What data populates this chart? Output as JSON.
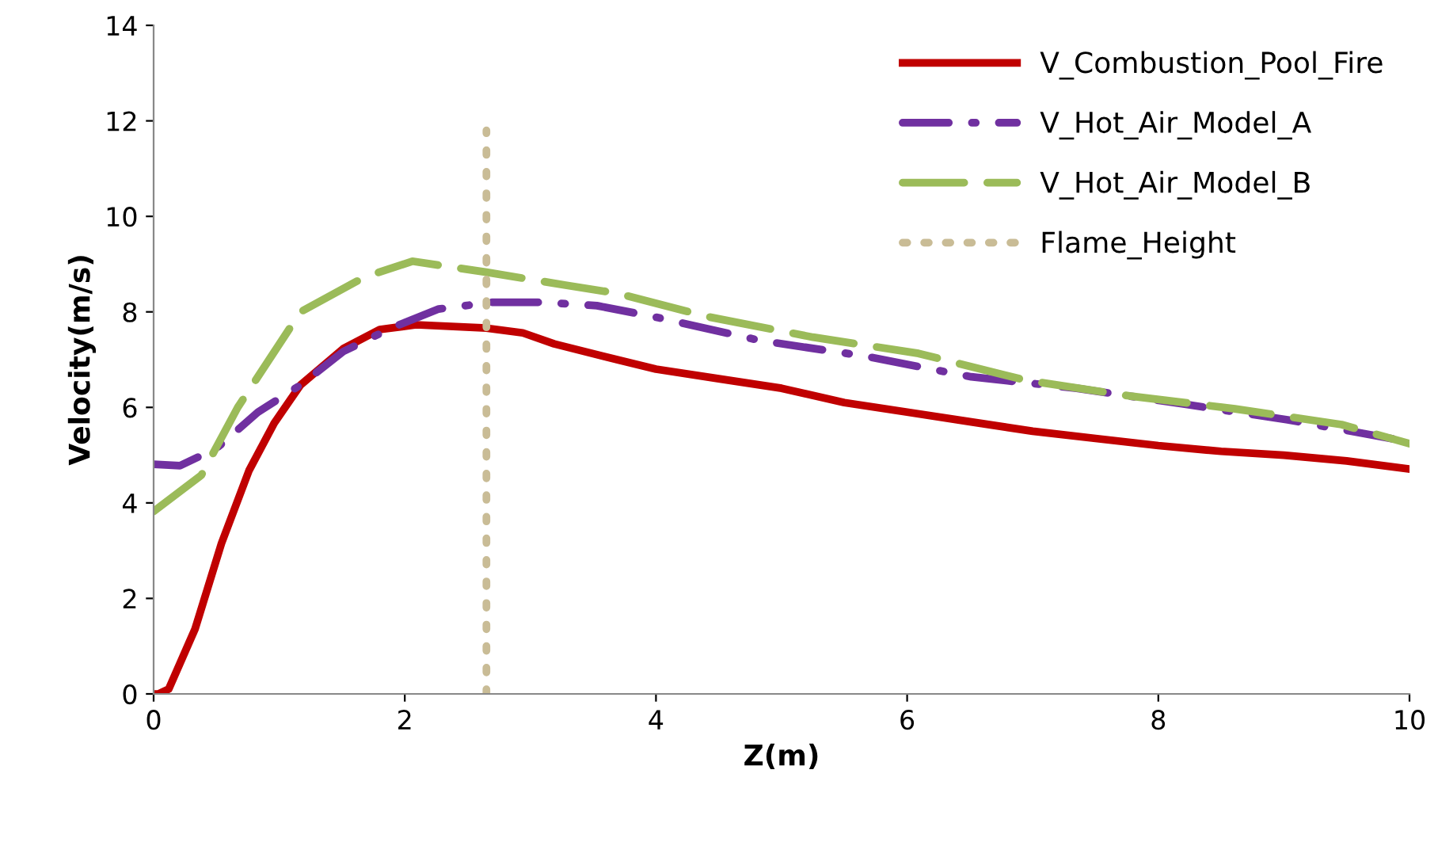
{
  "chart_data": {
    "type": "line",
    "xlabel": "Z(m)",
    "ylabel": "Velocity(m/s)",
    "xlim": [
      0,
      10
    ],
    "ylim": [
      0,
      14
    ],
    "xticks": [
      0,
      2,
      4,
      6,
      8,
      10
    ],
    "yticks": [
      0,
      2,
      4,
      6,
      8,
      10,
      12,
      14
    ],
    "grid": false,
    "legend": "top right",
    "marker": "none",
    "series": [
      {
        "name": "V_Combustion_Pool_Fire",
        "color": "#c00000",
        "line_style": "solid",
        "x": [
          0,
          0.04,
          0.12,
          0.33,
          0.54,
          0.76,
          0.96,
          1.17,
          1.51,
          1.8,
          2.09,
          2.65,
          2.94,
          3.19,
          3.69,
          4.0,
          4.5,
          5.0,
          5.5,
          6.0,
          6.5,
          7.0,
          7.5,
          8.0,
          8.5,
          9.0,
          9.5,
          10
        ],
        "values": [
          0,
          0,
          0.1,
          1.36,
          3.15,
          4.68,
          5.67,
          6.47,
          7.23,
          7.63,
          7.73,
          7.66,
          7.56,
          7.33,
          7.0,
          6.8,
          6.6,
          6.4,
          6.1,
          5.9,
          5.7,
          5.5,
          5.35,
          5.2,
          5.08,
          5.0,
          4.88,
          4.71
        ]
      },
      {
        "name": "V_Hot_Air_Model_A",
        "color": "#7030a0",
        "line_style": "dashdot",
        "x": [
          0,
          0.21,
          0.5,
          0.83,
          1.17,
          1.51,
          1.89,
          2.27,
          2.69,
          3.1,
          3.53,
          3.98,
          4.83,
          5.67,
          6.51,
          7.35,
          8.2,
          9.03,
          9.87
        ],
        "values": [
          4.81,
          4.78,
          5.14,
          5.9,
          6.47,
          7.17,
          7.66,
          8.06,
          8.2,
          8.2,
          8.13,
          7.9,
          7.4,
          7.07,
          6.64,
          6.4,
          6.07,
          5.74,
          5.34
        ]
      },
      {
        "name": "V_Hot_Air_Model_B",
        "color": "#9bbb59",
        "line_style": "dashed",
        "x": [
          0,
          0.38,
          0.67,
          1.17,
          1.68,
          2.06,
          2.65,
          3.28,
          3.69,
          4.41,
          5.25,
          6.09,
          6.94,
          7.77,
          8.61,
          9.46,
          10
        ],
        "values": [
          3.82,
          4.58,
          6.0,
          8.0,
          8.73,
          9.06,
          8.83,
          8.56,
          8.39,
          7.9,
          7.47,
          7.13,
          6.57,
          6.24,
          5.97,
          5.64,
          5.24
        ]
      },
      {
        "name": "Flame_Height",
        "color": "#c9bc96",
        "line_style": "dotted",
        "x": [
          2.65,
          2.65
        ],
        "values": [
          0,
          11.8
        ]
      }
    ]
  }
}
